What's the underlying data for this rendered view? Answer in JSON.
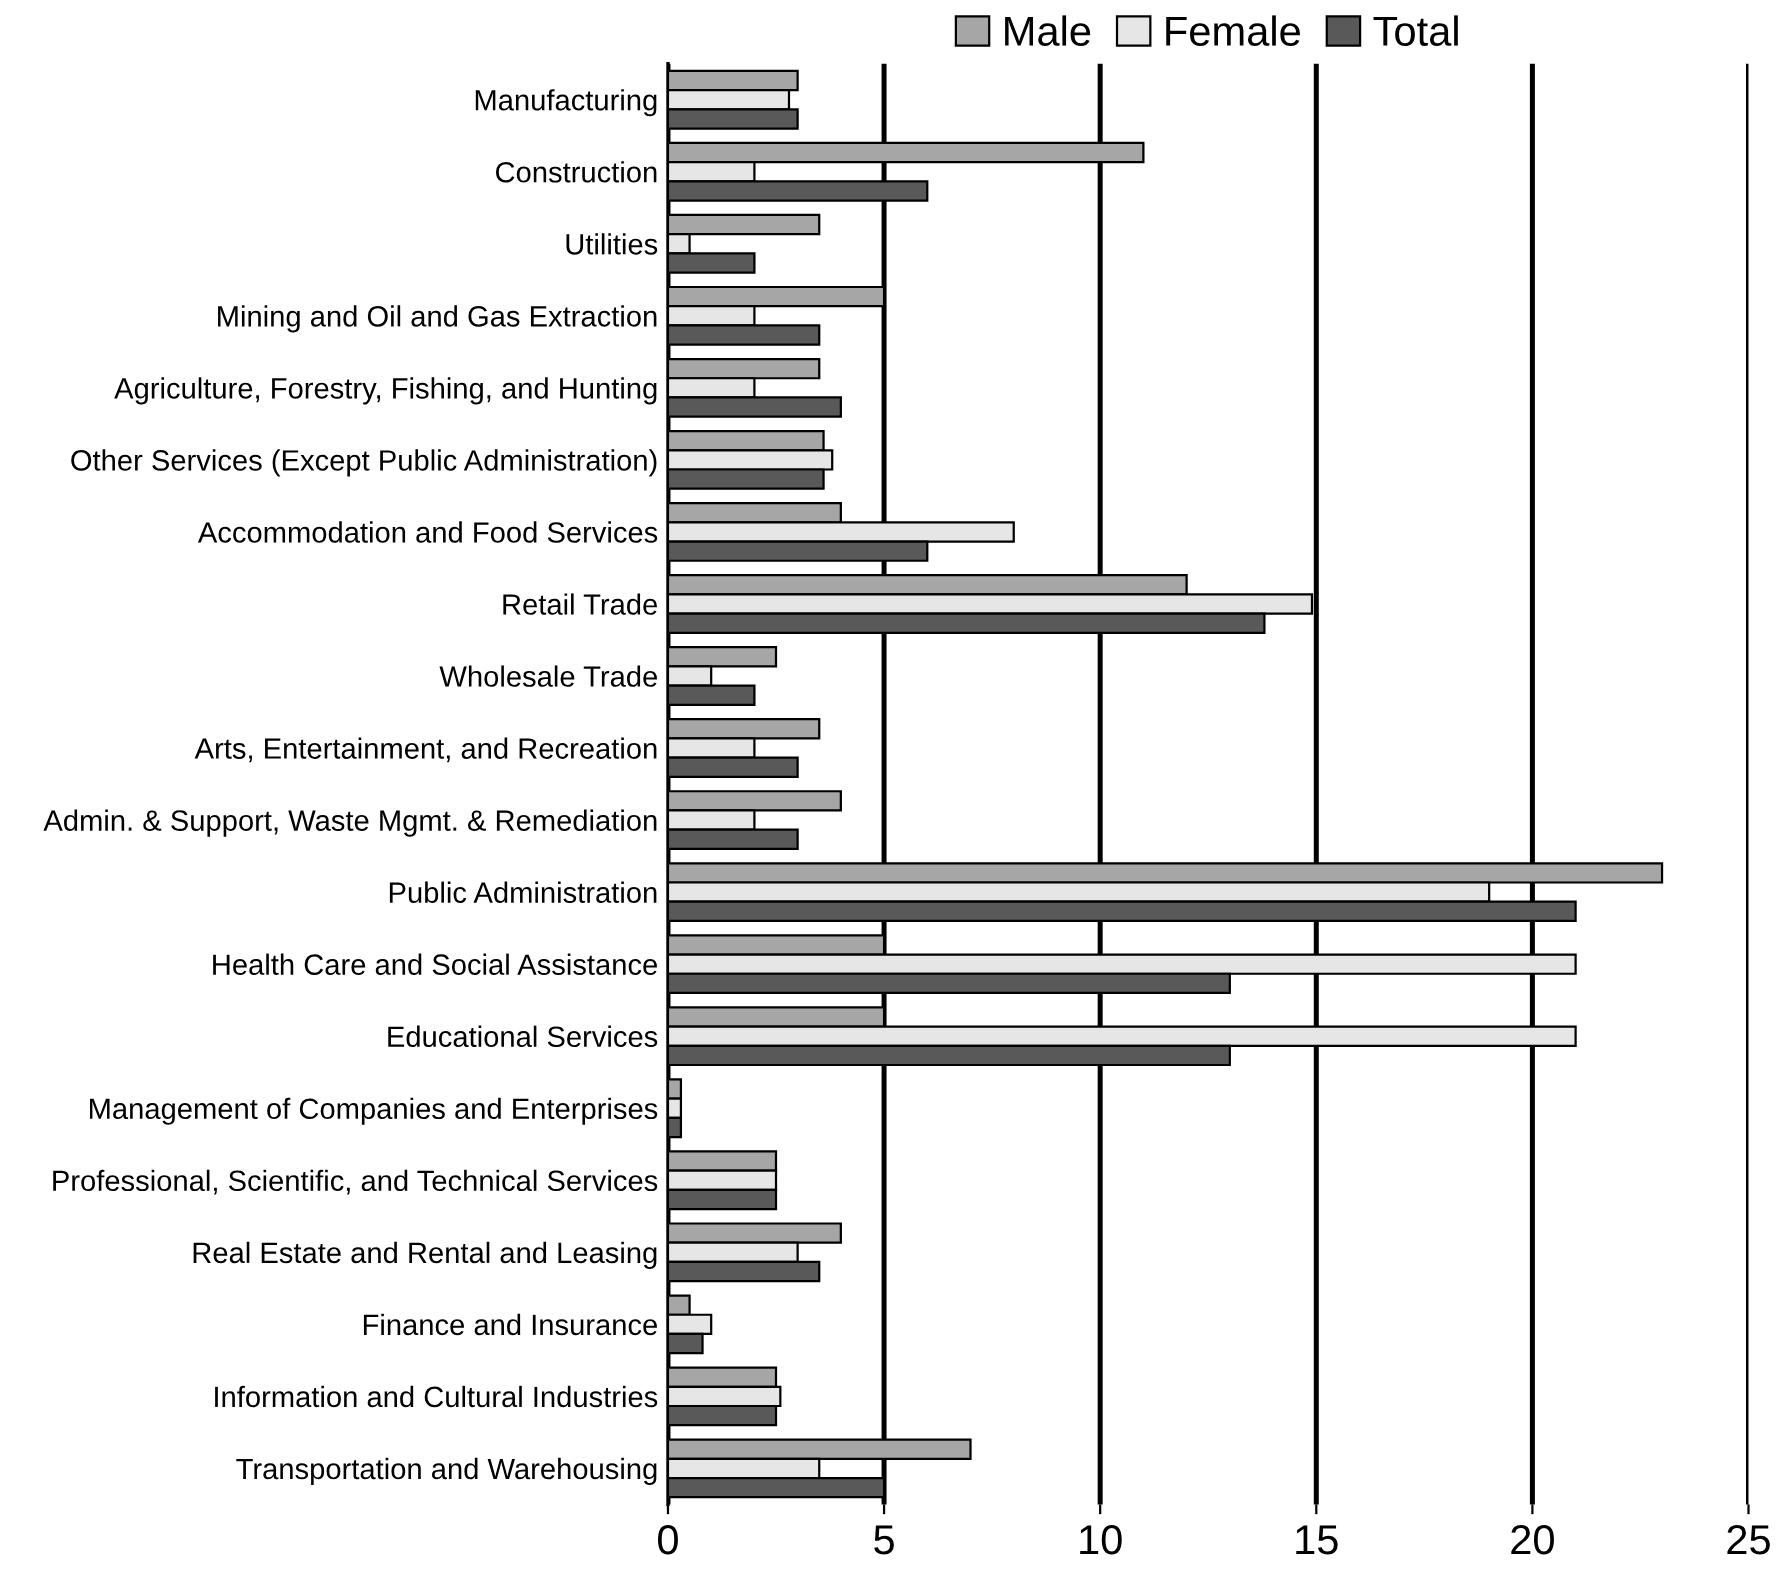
{
  "chart_data": {
    "type": "bar",
    "orientation": "horizontal",
    "categories": [
      "Manufacturing",
      "Construction",
      "Utilities",
      "Mining and Oil and Gas Extraction",
      "Agriculture, Forestry, Fishing, and Hunting",
      "Other Services (Except Public Administration)",
      "Accommodation and Food Services",
      "Retail Trade",
      "Wholesale Trade",
      "Arts, Entertainment, and Recreation",
      "Admin. & Support, Waste Mgmt. & Remediation",
      "Public Administration",
      "Health Care and Social Assistance",
      "Educational Services",
      "Management of Companies and Enterprises",
      "Professional, Scientific, and Technical Services",
      "Real Estate and Rental and Leasing",
      "Finance and Insurance",
      "Information and Cultural Industries",
      "Transportation and Warehousing"
    ],
    "series": [
      {
        "name": "Male",
        "color": "#a6a6a6",
        "values": [
          3.0,
          11.0,
          3.5,
          5.0,
          3.5,
          3.6,
          4.0,
          12.0,
          2.5,
          3.5,
          4.0,
          23.0,
          5.0,
          5.0,
          0.3,
          2.5,
          4.0,
          0.5,
          2.5,
          7.0
        ]
      },
      {
        "name": "Female",
        "color": "#e6e6e6",
        "values": [
          2.8,
          2.0,
          0.5,
          2.0,
          2.0,
          3.8,
          8.0,
          14.9,
          1.0,
          2.0,
          2.0,
          19.0,
          21.0,
          21.0,
          0.3,
          2.5,
          3.0,
          1.0,
          2.6,
          3.5
        ]
      },
      {
        "name": "Total",
        "color": "#595959",
        "values": [
          3.0,
          6.0,
          2.0,
          3.5,
          4.0,
          3.6,
          6.0,
          13.8,
          2.0,
          3.0,
          3.0,
          21.0,
          13.0,
          13.0,
          0.3,
          2.5,
          3.5,
          0.8,
          2.5,
          5.0
        ]
      }
    ],
    "xlim": [
      0,
      25
    ],
    "xticks": [
      0,
      5,
      10,
      15,
      20,
      25
    ],
    "grid": "x",
    "legend": "top"
  }
}
